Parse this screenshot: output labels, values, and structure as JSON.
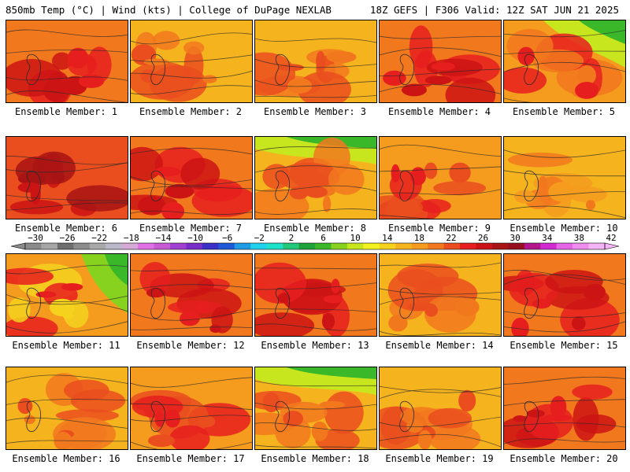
{
  "header": {
    "left": "850mb Temp (°C) | Wind (kts) | College of DuPage NEXLAB",
    "right": "18Z GEFS | F306 Valid: 12Z SAT JUN 21 2025"
  },
  "members": [
    {
      "label": "Ensemble Member: 1",
      "palette": "hot"
    },
    {
      "label": "Ensemble Member: 2",
      "palette": "warm"
    },
    {
      "label": "Ensemble Member: 3",
      "palette": "warm"
    },
    {
      "label": "Ensemble Member: 4",
      "palette": "hot"
    },
    {
      "label": "Ensemble Member: 5",
      "palette": "cool-ne"
    },
    {
      "label": "Ensemble Member: 6",
      "palette": "hottest"
    },
    {
      "label": "Ensemble Member: 7",
      "palette": "hot"
    },
    {
      "label": "Ensemble Member: 8",
      "palette": "cool-n"
    },
    {
      "label": "Ensemble Member: 9",
      "palette": "warm-ne"
    },
    {
      "label": "Ensemble Member: 10",
      "palette": "mild"
    },
    {
      "label": "Ensemble Member: 11",
      "palette": "cool-e"
    },
    {
      "label": "Ensemble Member: 12",
      "palette": "hot"
    },
    {
      "label": "Ensemble Member: 13",
      "palette": "hot"
    },
    {
      "label": "Ensemble Member: 14",
      "palette": "warm"
    },
    {
      "label": "Ensemble Member: 15",
      "palette": "hot"
    },
    {
      "label": "Ensemble Member: 16",
      "palette": "warm"
    },
    {
      "label": "Ensemble Member: 17",
      "palette": "warm-ne"
    },
    {
      "label": "Ensemble Member: 18",
      "palette": "cool-n"
    },
    {
      "label": "Ensemble Member: 19",
      "palette": "warm"
    },
    {
      "label": "Ensemble Member: 20",
      "palette": "hot"
    }
  ],
  "colorbar": {
    "ticks": [
      "−30",
      "−26",
      "−22",
      "−18",
      "−14",
      "−10",
      "−6",
      "−2",
      "2",
      "6",
      "10",
      "14",
      "18",
      "22",
      "26",
      "30",
      "34",
      "38",
      "42"
    ],
    "colors": [
      "#8a8a8a",
      "#a6a6a6",
      "#6e6e6e",
      "#8c8c8c",
      "#a8a8a8",
      "#b9b9c9",
      "#d6a9d6",
      "#e16fe6",
      "#c85ad6",
      "#a23fd3",
      "#7a2ec8",
      "#3b30c8",
      "#1f5ad6",
      "#1f9be6",
      "#20d2f0",
      "#1ee2c8",
      "#23c87a",
      "#20a23a",
      "#3ab82a",
      "#86d21e",
      "#c8e61e",
      "#f2f21e",
      "#f5d21e",
      "#f5b41e",
      "#f59b1e",
      "#f2781e",
      "#ea4e1e",
      "#e61e1e",
      "#cc1414",
      "#a81414",
      "#960f1e",
      "#b4148c",
      "#d22ad2",
      "#e664e6",
      "#f08cf0",
      "#f5b4f5"
    ]
  }
}
